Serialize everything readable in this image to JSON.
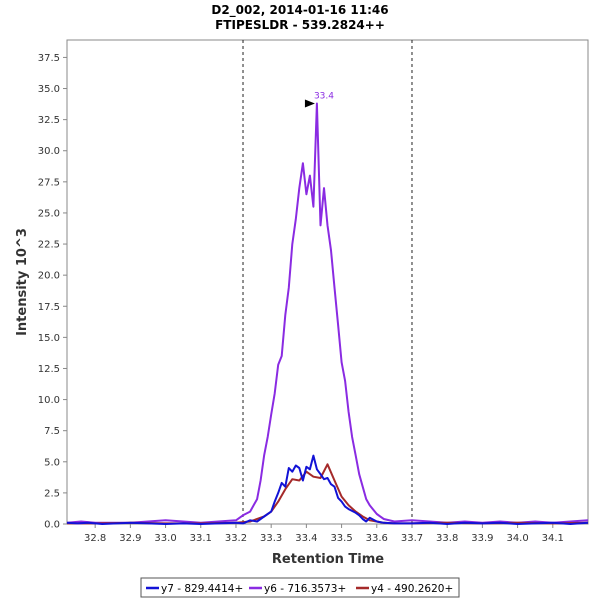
{
  "chart_data": {
    "type": "line",
    "title": "D2_002, 2014-01-16 11:46",
    "subtitle": "FTIPESLDR - 539.2824++",
    "xlabel": "Retention Time",
    "ylabel": "Intensity 10^3",
    "xlim": [
      32.72,
      34.2
    ],
    "ylim": [
      0,
      38.9
    ],
    "x_ticks": [
      32.8,
      32.9,
      33.0,
      33.1,
      33.2,
      33.3,
      33.4,
      33.5,
      33.6,
      33.7,
      33.8,
      33.9,
      34.0,
      34.1
    ],
    "x_tick_labels": [
      "32.8",
      "32.9",
      "33.0",
      "33.1",
      "33.2",
      "33.3",
      "33.4",
      "33.5",
      "33.6",
      "33.7",
      "33.8",
      "33.9",
      "34.0",
      "34.1"
    ],
    "y_ticks": [
      0,
      2.5,
      5,
      7.5,
      10,
      12.5,
      15,
      17.5,
      20,
      22.5,
      25,
      27.5,
      30,
      32.5,
      35,
      37.5
    ],
    "y_tick_labels": [
      "0.0",
      "2.5",
      "5.0",
      "7.5",
      "10.0",
      "12.5",
      "15.0",
      "17.5",
      "20.0",
      "22.5",
      "25.0",
      "27.5",
      "30.0",
      "32.5",
      "35.0",
      "37.5"
    ],
    "integration_bounds": [
      33.22,
      33.7
    ],
    "peak_annotation": {
      "label": "33.4",
      "x": 33.43,
      "y": 33.8
    },
    "legend_position": "bottom",
    "series": [
      {
        "name": "y7 - 829.4414+",
        "color": "#1212d6",
        "points": [
          [
            32.72,
            0.1
          ],
          [
            32.75,
            0.05
          ],
          [
            32.78,
            0.1
          ],
          [
            32.82,
            0.0
          ],
          [
            32.86,
            0.05
          ],
          [
            32.9,
            0.1
          ],
          [
            32.95,
            0.05
          ],
          [
            33.0,
            0.0
          ],
          [
            33.05,
            0.05
          ],
          [
            33.1,
            0.0
          ],
          [
            33.15,
            0.05
          ],
          [
            33.2,
            0.1
          ],
          [
            33.22,
            0.05
          ],
          [
            33.24,
            0.3
          ],
          [
            33.26,
            0.2
          ],
          [
            33.28,
            0.6
          ],
          [
            33.3,
            1.0
          ],
          [
            33.31,
            1.8
          ],
          [
            33.32,
            2.5
          ],
          [
            33.33,
            3.3
          ],
          [
            33.34,
            3.0
          ],
          [
            33.35,
            4.5
          ],
          [
            33.36,
            4.2
          ],
          [
            33.37,
            4.7
          ],
          [
            33.38,
            4.5
          ],
          [
            33.39,
            3.5
          ],
          [
            33.4,
            4.6
          ],
          [
            33.41,
            4.4
          ],
          [
            33.42,
            5.5
          ],
          [
            33.43,
            4.4
          ],
          [
            33.44,
            4.0
          ],
          [
            33.45,
            3.6
          ],
          [
            33.46,
            3.7
          ],
          [
            33.47,
            3.2
          ],
          [
            33.48,
            3.0
          ],
          [
            33.49,
            2.1
          ],
          [
            33.5,
            1.8
          ],
          [
            33.51,
            1.4
          ],
          [
            33.52,
            1.2
          ],
          [
            33.54,
            0.9
          ],
          [
            33.55,
            0.7
          ],
          [
            33.56,
            0.4
          ],
          [
            33.57,
            0.2
          ],
          [
            33.58,
            0.5
          ],
          [
            33.6,
            0.2
          ],
          [
            33.62,
            0.1
          ],
          [
            33.65,
            0.05
          ],
          [
            33.7,
            0.05
          ],
          [
            33.75,
            0.1
          ],
          [
            33.8,
            0.0
          ],
          [
            33.85,
            0.1
          ],
          [
            33.9,
            0.05
          ],
          [
            33.95,
            0.1
          ],
          [
            34.0,
            0.0
          ],
          [
            34.05,
            0.05
          ],
          [
            34.1,
            0.1
          ],
          [
            34.15,
            0.0
          ],
          [
            34.2,
            0.1
          ]
        ]
      },
      {
        "name": "y6 - 716.3573+",
        "color": "#8a2be2",
        "points": [
          [
            32.72,
            0.1
          ],
          [
            32.76,
            0.2
          ],
          [
            32.8,
            0.1
          ],
          [
            32.85,
            0.1
          ],
          [
            32.9,
            0.1
          ],
          [
            32.95,
            0.2
          ],
          [
            33.0,
            0.3
          ],
          [
            33.05,
            0.2
          ],
          [
            33.1,
            0.1
          ],
          [
            33.15,
            0.2
          ],
          [
            33.2,
            0.3
          ],
          [
            33.22,
            0.7
          ],
          [
            33.24,
            1.0
          ],
          [
            33.26,
            2.0
          ],
          [
            33.27,
            3.5
          ],
          [
            33.28,
            5.5
          ],
          [
            33.29,
            7.0
          ],
          [
            33.3,
            8.8
          ],
          [
            33.31,
            10.5
          ],
          [
            33.32,
            12.8
          ],
          [
            33.33,
            13.5
          ],
          [
            33.34,
            16.8
          ],
          [
            33.35,
            19.0
          ],
          [
            33.36,
            22.5
          ],
          [
            33.37,
            24.5
          ],
          [
            33.38,
            27.0
          ],
          [
            33.39,
            29.0
          ],
          [
            33.4,
            26.5
          ],
          [
            33.41,
            28.0
          ],
          [
            33.42,
            25.5
          ],
          [
            33.43,
            33.8
          ],
          [
            33.44,
            24.0
          ],
          [
            33.45,
            27.0
          ],
          [
            33.46,
            24.0
          ],
          [
            33.47,
            22.0
          ],
          [
            33.48,
            19.0
          ],
          [
            33.49,
            16.0
          ],
          [
            33.5,
            13.0
          ],
          [
            33.51,
            11.5
          ],
          [
            33.52,
            9.0
          ],
          [
            33.53,
            7.0
          ],
          [
            33.54,
            5.5
          ],
          [
            33.55,
            4.0
          ],
          [
            33.56,
            3.0
          ],
          [
            33.57,
            2.0
          ],
          [
            33.58,
            1.5
          ],
          [
            33.6,
            0.8
          ],
          [
            33.62,
            0.4
          ],
          [
            33.65,
            0.2
          ],
          [
            33.7,
            0.3
          ],
          [
            33.75,
            0.2
          ],
          [
            33.8,
            0.1
          ],
          [
            33.85,
            0.2
          ],
          [
            33.9,
            0.1
          ],
          [
            33.95,
            0.2
          ],
          [
            34.0,
            0.1
          ],
          [
            34.05,
            0.2
          ],
          [
            34.1,
            0.1
          ],
          [
            34.15,
            0.2
          ],
          [
            34.2,
            0.3
          ]
        ]
      },
      {
        "name": "y4 - 490.2620+",
        "color": "#a52a2a",
        "points": [
          [
            32.72,
            0.05
          ],
          [
            32.8,
            0.05
          ],
          [
            32.9,
            0.1
          ],
          [
            33.0,
            0.05
          ],
          [
            33.1,
            0.05
          ],
          [
            33.2,
            0.1
          ],
          [
            33.24,
            0.2
          ],
          [
            33.28,
            0.6
          ],
          [
            33.3,
            1.0
          ],
          [
            33.32,
            1.8
          ],
          [
            33.34,
            2.8
          ],
          [
            33.36,
            3.6
          ],
          [
            33.38,
            3.5
          ],
          [
            33.4,
            4.2
          ],
          [
            33.42,
            3.8
          ],
          [
            33.44,
            3.7
          ],
          [
            33.46,
            4.8
          ],
          [
            33.48,
            3.5
          ],
          [
            33.5,
            2.2
          ],
          [
            33.52,
            1.5
          ],
          [
            33.54,
            1.0
          ],
          [
            33.56,
            0.6
          ],
          [
            33.58,
            0.3
          ],
          [
            33.6,
            0.2
          ],
          [
            33.62,
            0.1
          ],
          [
            33.65,
            0.05
          ],
          [
            33.7,
            0.05
          ],
          [
            33.8,
            0.1
          ],
          [
            33.9,
            0.05
          ],
          [
            34.0,
            0.1
          ],
          [
            34.1,
            0.05
          ],
          [
            34.2,
            0.1
          ]
        ]
      }
    ]
  }
}
